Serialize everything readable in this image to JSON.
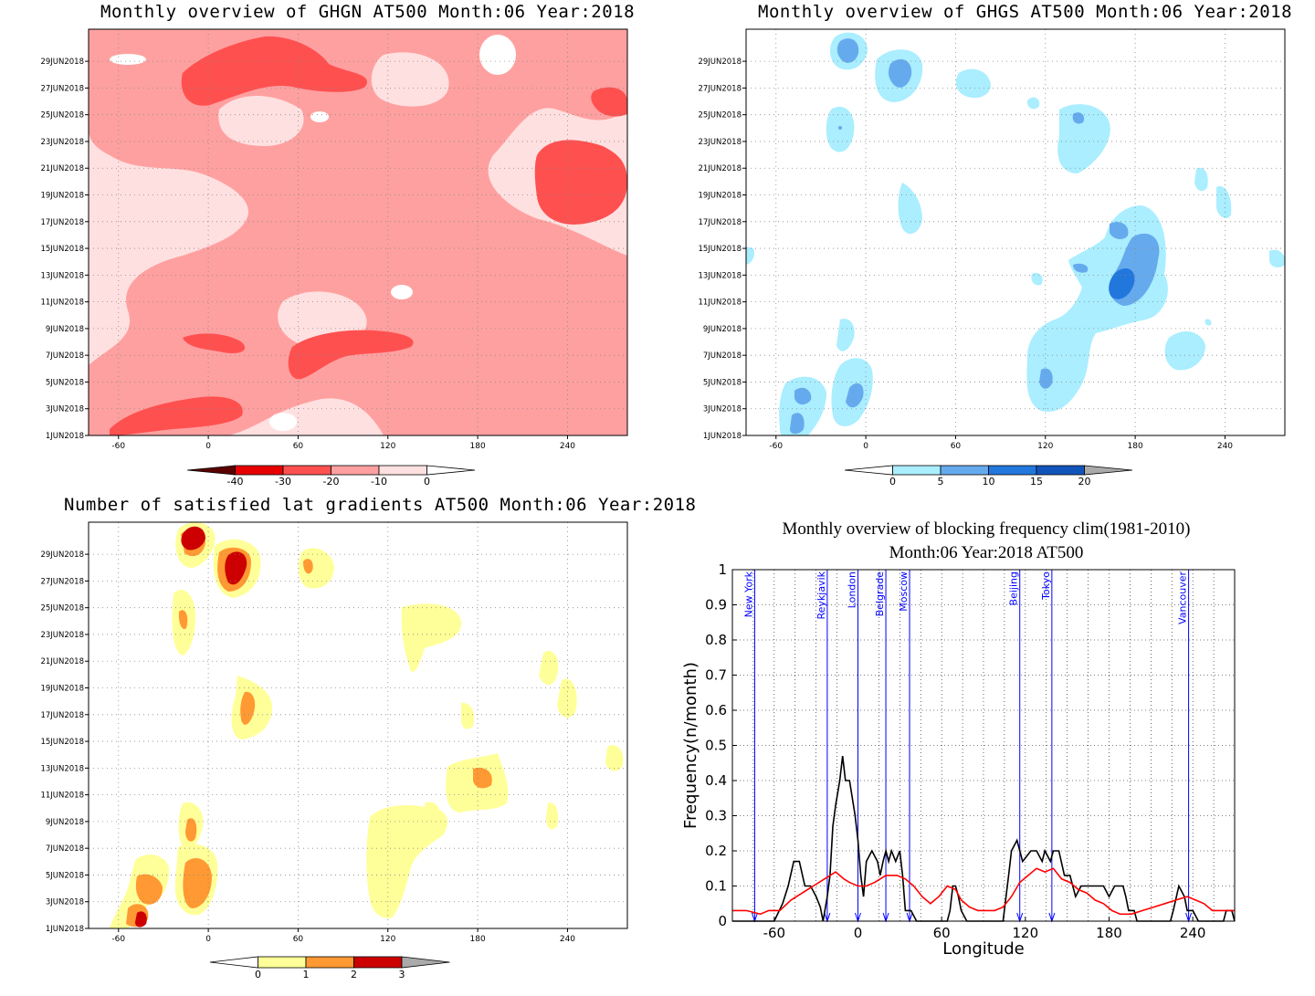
{
  "panels": {
    "ghgn": {
      "title": "Monthly overview of GHGN AT500 Month:06 Year:2018"
    },
    "ghgs": {
      "title": "Monthly overview of GHGS AT500 Month:06 Year:2018"
    },
    "gradients": {
      "title": "Number of satisfied lat gradients AT500 Month:06 Year:2018"
    },
    "blocking": {
      "title_line1": "Monthly overview of blocking frequency clim(1981-2010)",
      "title_line2": "Month:06 Year:2018  AT500"
    }
  },
  "colors": {
    "ghgn_levels": [
      "#5a0000",
      "#e60000",
      "#ff5050",
      "#ffa0a0",
      "#ffe0e0",
      "#ffffff"
    ],
    "ghgs_levels": [
      "#ffffff",
      "#aaeeff",
      "#66aaee",
      "#2277dd",
      "#1155bb",
      "#aaaaaa"
    ],
    "grad_levels": [
      "#ffffff",
      "#ffff99",
      "#ff9933",
      "#cc0000",
      "#aaaaaa"
    ],
    "blocking_obs": "#000000",
    "blocking_clim": "#ff0000",
    "city_lines": "#0000ff"
  },
  "chart_data": [
    {
      "type": "heatmap",
      "title": "Monthly overview of GHGN AT500 Month:06 Year:2018",
      "xticks": [
        "-60",
        "0",
        "60",
        "120",
        "180",
        "240"
      ],
      "xtick_values": [
        -60,
        0,
        60,
        120,
        180,
        240
      ],
      "xlim": [
        -80,
        280
      ],
      "yticks": [
        "1JUN2018",
        "3JUN2018",
        "5JUN2018",
        "7JUN2018",
        "9JUN2018",
        "11JUN2018",
        "13JUN2018",
        "15JUN2018",
        "17JUN2018",
        "19JUN2018",
        "21JUN2018",
        "23JUN2018",
        "25JUN2018",
        "27JUN2018",
        "29JUN2018"
      ],
      "colorbar": {
        "labels": [
          "-40",
          "-30",
          "-20",
          "-10",
          "0"
        ],
        "levels": [
          -40,
          -30,
          -20,
          -10,
          0
        ]
      }
    },
    {
      "type": "heatmap",
      "title": "Monthly overview of GHGS AT500 Month:06 Year:2018",
      "xticks": [
        "-60",
        "0",
        "60",
        "120",
        "180",
        "240"
      ],
      "xtick_values": [
        -60,
        0,
        60,
        120,
        180,
        240
      ],
      "xlim": [
        -80,
        280
      ],
      "yticks": [
        "1JUN2018",
        "3JUN2018",
        "5JUN2018",
        "7JUN2018",
        "9JUN2018",
        "11JUN2018",
        "13JUN2018",
        "15JUN2018",
        "17JUN2018",
        "19JUN2018",
        "21JUN2018",
        "23JUN2018",
        "25JUN2018",
        "27JUN2018",
        "29JUN2018"
      ],
      "colorbar": {
        "labels": [
          "0",
          "5",
          "10",
          "15",
          "20"
        ],
        "levels": [
          0,
          5,
          10,
          15,
          20
        ]
      }
    },
    {
      "type": "heatmap",
      "title": "Number of satisfied lat gradients AT500 Month:06 Year:2018",
      "xticks": [
        "-60",
        "0",
        "60",
        "120",
        "180",
        "240"
      ],
      "xtick_values": [
        -60,
        0,
        60,
        120,
        180,
        240
      ],
      "xlim": [
        -80,
        280
      ],
      "yticks": [
        "1JUN2018",
        "3JUN2018",
        "5JUN2018",
        "7JUN2018",
        "9JUN2018",
        "11JUN2018",
        "13JUN2018",
        "15JUN2018",
        "17JUN2018",
        "19JUN2018",
        "21JUN2018",
        "23JUN2018",
        "25JUN2018",
        "27JUN2018",
        "29JUN2018"
      ],
      "colorbar": {
        "labels": [
          "0",
          "1",
          "2",
          "3"
        ],
        "levels": [
          0,
          1,
          2,
          3
        ]
      }
    },
    {
      "type": "line",
      "title": "Monthly overview of blocking frequency clim(1981-2010) Month:06 Year:2018  AT500",
      "xlabel": "Longitude",
      "ylabel": "Frequency(n/month)",
      "xlim": [
        -90,
        270
      ],
      "ylim": [
        0,
        1
      ],
      "xticks": [
        "-60",
        "0",
        "60",
        "120",
        "180",
        "240"
      ],
      "xtick_values": [
        -60,
        0,
        60,
        120,
        180,
        240
      ],
      "yticks": [
        "0",
        "0.1",
        "0.2",
        "0.3",
        "0.4",
        "0.5",
        "0.6",
        "0.7",
        "0.8",
        "0.9",
        "1"
      ],
      "ytick_values": [
        0,
        0.1,
        0.2,
        0.3,
        0.4,
        0.5,
        0.6,
        0.7,
        0.8,
        0.9,
        1
      ],
      "grid": true,
      "cities": [
        {
          "name": "New York",
          "lon": -74
        },
        {
          "name": "Reykjavik",
          "lon": -22
        },
        {
          "name": "London",
          "lon": 0
        },
        {
          "name": "Belgrade",
          "lon": 20
        },
        {
          "name": "Moscow",
          "lon": 37
        },
        {
          "name": "Beijing",
          "lon": 116
        },
        {
          "name": "Tokyo",
          "lon": 139
        },
        {
          "name": "Vancouver",
          "lon": 237
        }
      ],
      "series": [
        {
          "values": [
            [
              -90,
              0
            ],
            [
              -60,
              0
            ],
            [
              -54,
              0.05
            ],
            [
              -50,
              0.1
            ],
            [
              -46,
              0.17
            ],
            [
              -42,
              0.17
            ],
            [
              -38,
              0.1
            ],
            [
              -34,
              0.1
            ],
            [
              -30,
              0.07
            ],
            [
              -27,
              0.04
            ],
            [
              -25,
              0
            ],
            [
              -22,
              0.07
            ],
            [
              -20,
              0.13
            ],
            [
              -18,
              0.27
            ],
            [
              -16,
              0.33
            ],
            [
              -13,
              0.4
            ],
            [
              -11,
              0.47
            ],
            [
              -9,
              0.4
            ],
            [
              -6,
              0.4
            ],
            [
              -2,
              0.3
            ],
            [
              0,
              0.23
            ],
            [
              2,
              0.13
            ],
            [
              4,
              0.07
            ],
            [
              6,
              0.17
            ],
            [
              10,
              0.2
            ],
            [
              14,
              0.17
            ],
            [
              16,
              0.13
            ],
            [
              18,
              0.17
            ],
            [
              20,
              0.2
            ],
            [
              22,
              0.17
            ],
            [
              24,
              0.2
            ],
            [
              27,
              0.17
            ],
            [
              30,
              0.2
            ],
            [
              32,
              0.13
            ],
            [
              34,
              0.03
            ],
            [
              38,
              0.03
            ],
            [
              42,
              0
            ],
            [
              60,
              0
            ],
            [
              64,
              0
            ],
            [
              66,
              0.03
            ],
            [
              68,
              0.1
            ],
            [
              70,
              0.1
            ],
            [
              72,
              0.07
            ],
            [
              74,
              0.03
            ],
            [
              78,
              0
            ],
            [
              104,
              0
            ],
            [
              108,
              0.13
            ],
            [
              110,
              0.2
            ],
            [
              114,
              0.23
            ],
            [
              118,
              0.17
            ],
            [
              124,
              0.2
            ],
            [
              128,
              0.2
            ],
            [
              132,
              0.17
            ],
            [
              134,
              0.2
            ],
            [
              138,
              0.17
            ],
            [
              140,
              0.2
            ],
            [
              144,
              0.2
            ],
            [
              148,
              0.13
            ],
            [
              152,
              0.13
            ],
            [
              156,
              0.07
            ],
            [
              160,
              0.1
            ],
            [
              166,
              0.1
            ],
            [
              170,
              0.1
            ],
            [
              176,
              0.1
            ],
            [
              180,
              0.07
            ],
            [
              184,
              0.1
            ],
            [
              190,
              0.1
            ],
            [
              192,
              0.07
            ],
            [
              194,
              0.03
            ],
            [
              198,
              0.03
            ],
            [
              200,
              0
            ],
            [
              224,
              0
            ],
            [
              226,
              0.03
            ],
            [
              230,
              0.1
            ],
            [
              234,
              0.07
            ],
            [
              236,
              0.03
            ],
            [
              240,
              0.03
            ],
            [
              244,
              0
            ],
            [
              262,
              0
            ],
            [
              264,
              0.03
            ],
            [
              268,
              0.03
            ],
            [
              270,
              0
            ]
          ]
        },
        {
          "values": [
            [
              -90,
              0.03
            ],
            [
              -80,
              0.03
            ],
            [
              -70,
              0.02
            ],
            [
              -64,
              0.03
            ],
            [
              -56,
              0.03
            ],
            [
              -48,
              0.06
            ],
            [
              -40,
              0.08
            ],
            [
              -32,
              0.1
            ],
            [
              -24,
              0.12
            ],
            [
              -16,
              0.14
            ],
            [
              -10,
              0.12
            ],
            [
              -6,
              0.11
            ],
            [
              0,
              0.1
            ],
            [
              6,
              0.1
            ],
            [
              12,
              0.11
            ],
            [
              20,
              0.13
            ],
            [
              28,
              0.13
            ],
            [
              34,
              0.12
            ],
            [
              40,
              0.1
            ],
            [
              46,
              0.07
            ],
            [
              52,
              0.05
            ],
            [
              58,
              0.07
            ],
            [
              64,
              0.1
            ],
            [
              70,
              0.09
            ],
            [
              74,
              0.06
            ],
            [
              80,
              0.04
            ],
            [
              86,
              0.03
            ],
            [
              92,
              0.03
            ],
            [
              98,
              0.03
            ],
            [
              104,
              0.04
            ],
            [
              110,
              0.07
            ],
            [
              116,
              0.11
            ],
            [
              122,
              0.13
            ],
            [
              128,
              0.15
            ],
            [
              134,
              0.14
            ],
            [
              140,
              0.15
            ],
            [
              146,
              0.12
            ],
            [
              152,
              0.11
            ],
            [
              158,
              0.09
            ],
            [
              164,
              0.08
            ],
            [
              170,
              0.06
            ],
            [
              176,
              0.05
            ],
            [
              182,
              0.03
            ],
            [
              188,
              0.02
            ],
            [
              196,
              0.02
            ],
            [
              204,
              0.03
            ],
            [
              212,
              0.04
            ],
            [
              220,
              0.05
            ],
            [
              228,
              0.06
            ],
            [
              236,
              0.07
            ],
            [
              242,
              0.06
            ],
            [
              248,
              0.05
            ],
            [
              254,
              0.03
            ],
            [
              262,
              0.03
            ],
            [
              270,
              0.03
            ]
          ]
        }
      ]
    }
  ]
}
